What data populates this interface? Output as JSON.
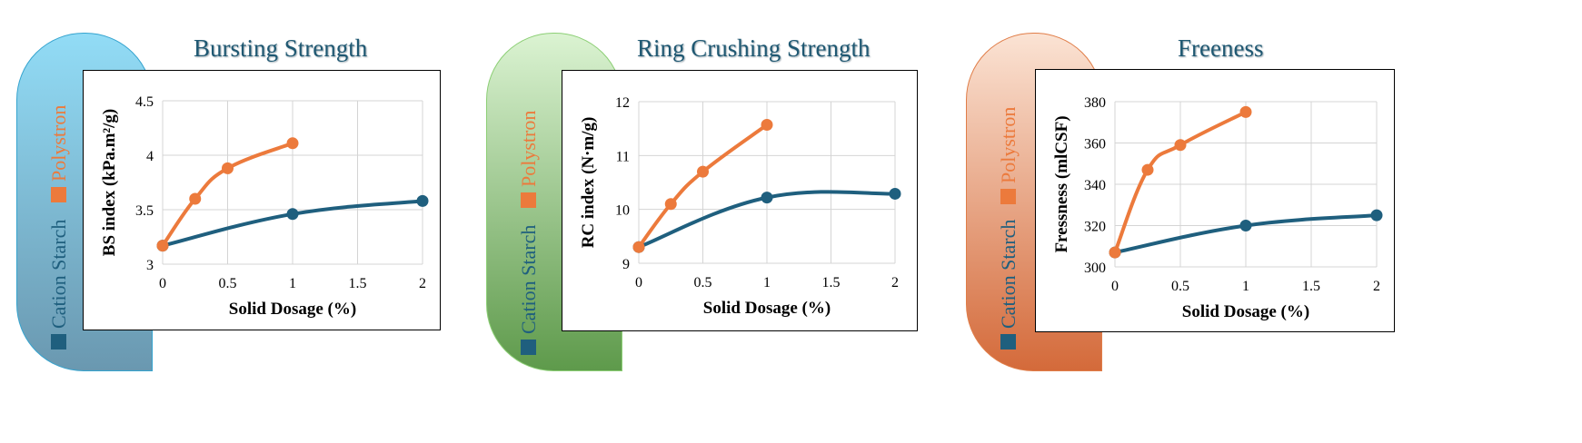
{
  "legend": {
    "cation_label": "Cation Starch",
    "poly_label": "Polystron"
  },
  "colors": {
    "cation": "#1f5f7e",
    "polystron": "#ec7a3c"
  },
  "chart_data": [
    {
      "type": "line",
      "title": "Bursting Strength",
      "xlabel": "Solid Dosage (%)",
      "ylabel": "BS index (kPa.m²/g)",
      "xlim": [
        0,
        2
      ],
      "ylim": [
        3,
        4.5
      ],
      "xticks": [
        "0",
        "0.5",
        "1",
        "1.5",
        "2"
      ],
      "yticks": [
        "3",
        "3.5",
        "4",
        "4.5"
      ],
      "grid": true,
      "series": [
        {
          "name": "Cation Starch",
          "x": [
            0,
            1,
            2
          ],
          "y": [
            3.17,
            3.46,
            3.58
          ]
        },
        {
          "name": "Polystron",
          "x": [
            0,
            0.25,
            0.5,
            1
          ],
          "y": [
            3.17,
            3.6,
            3.88,
            4.11
          ]
        }
      ]
    },
    {
      "type": "line",
      "title": "Ring Crushing Strength",
      "xlabel": "Solid Dosage (%)",
      "ylabel": "RC index (N·m/g)",
      "xlim": [
        0,
        2
      ],
      "ylim": [
        9,
        12
      ],
      "xticks": [
        "0",
        "0.5",
        "1",
        "1.5",
        "2"
      ],
      "yticks": [
        "9",
        "10",
        "11",
        "12"
      ],
      "grid": true,
      "series": [
        {
          "name": "Cation Starch",
          "x": [
            0,
            1,
            2
          ],
          "y": [
            9.3,
            10.22,
            10.29
          ]
        },
        {
          "name": "Polystron",
          "x": [
            0,
            0.25,
            0.5,
            1
          ],
          "y": [
            9.3,
            10.1,
            10.7,
            11.57
          ]
        }
      ]
    },
    {
      "type": "line",
      "title": "Freeness",
      "xlabel": "Solid Dosage (%)",
      "ylabel": "Fressness (mlCSF)",
      "xlim": [
        0,
        2
      ],
      "ylim": [
        300,
        380
      ],
      "xticks": [
        "0",
        "0.5",
        "1",
        "1.5",
        "2"
      ],
      "yticks": [
        "300",
        "320",
        "340",
        "360",
        "380"
      ],
      "grid": true,
      "series": [
        {
          "name": "Cation Starch",
          "x": [
            0,
            1,
            2
          ],
          "y": [
            307,
            320,
            325
          ]
        },
        {
          "name": "Polystron",
          "x": [
            0,
            0.25,
            0.5,
            1
          ],
          "y": [
            307,
            347,
            359,
            375
          ]
        }
      ]
    }
  ]
}
